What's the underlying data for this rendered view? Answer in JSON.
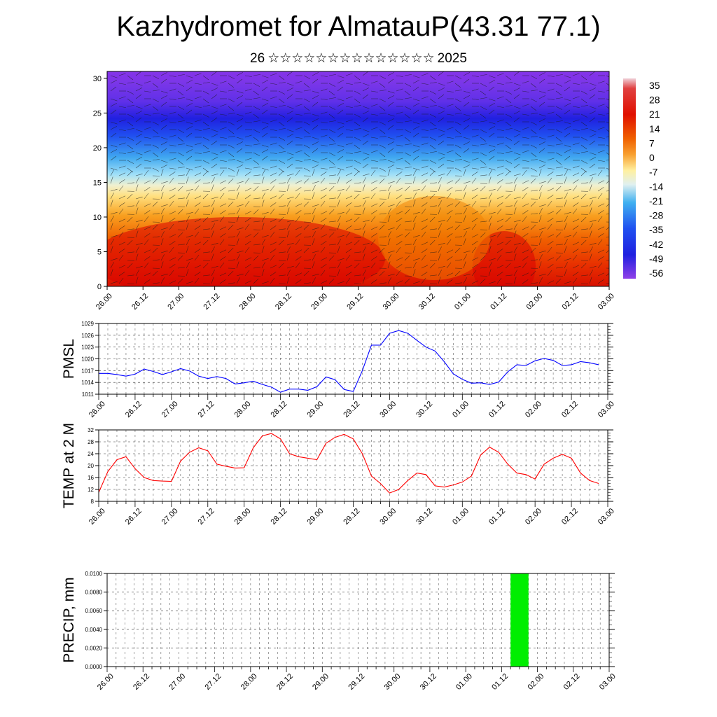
{
  "title": "Kazhydromet for AlmatauP(43.31 77.1)",
  "subtitle": {
    "day": "26",
    "stars": "☆☆☆☆☆☆☆☆☆☆☆☆☆☆",
    "year": "2025"
  },
  "time_labels": [
    "26.00",
    "26.12",
    "27.00",
    "27.12",
    "28.00",
    "28.12",
    "29.00",
    "29.12",
    "30.00",
    "30.12",
    "01.00",
    "01.12",
    "02.00",
    "02.12",
    "03.00"
  ],
  "chart_data": [
    {
      "type": "heatmap",
      "name": "cross-section",
      "ylim": [
        0,
        31
      ],
      "yticks": [
        0,
        5,
        10,
        15,
        20,
        25,
        30
      ],
      "colorbar": {
        "labels": [
          "35",
          "28",
          "21",
          "14",
          "7",
          "0",
          "-7",
          "-14",
          "-21",
          "-28",
          "-35",
          "-42",
          "-49",
          "-56"
        ]
      },
      "colors": {
        "warm": "#e02000",
        "neutral": "#fff0a0",
        "cold": "#2020f0",
        "top": "#8a2be2"
      }
    },
    {
      "type": "line",
      "ylabel": "PMSL",
      "ylim": [
        1011,
        1029
      ],
      "yticks": [
        "1011",
        "1014",
        "1017",
        "1020",
        "1023",
        "1026",
        "1029"
      ],
      "color": "#0000ff",
      "x": [
        0,
        3,
        6,
        9,
        12,
        15,
        18,
        21,
        24,
        27,
        30,
        33,
        36,
        39,
        42,
        45,
        48,
        51,
        54,
        57,
        60,
        63,
        66,
        69,
        72,
        75,
        78,
        81,
        84,
        87,
        90,
        93,
        96,
        99,
        102,
        105,
        108,
        111,
        114,
        117,
        120,
        123,
        126,
        129,
        132,
        135,
        138,
        141,
        144,
        147,
        150,
        153,
        156,
        159,
        162,
        165
      ],
      "y": [
        1016.3,
        1016.3,
        1016.0,
        1015.6,
        1016.1,
        1017.4,
        1016.8,
        1016.0,
        1016.7,
        1017.5,
        1016.9,
        1015.6,
        1015.0,
        1015.5,
        1015.0,
        1013.6,
        1013.9,
        1014.3,
        1013.5,
        1012.8,
        1011.5,
        1012.3,
        1012.3,
        1012.0,
        1012.9,
        1015.4,
        1014.7,
        1012.2,
        1011.7,
        1017.0,
        1023.5,
        1023.5,
        1026.5,
        1027.2,
        1026.5,
        1024.7,
        1023.0,
        1022.0,
        1019.3,
        1016.2,
        1014.8,
        1013.8,
        1013.9,
        1013.5,
        1014.1,
        1016.7,
        1018.5,
        1018.3,
        1019.5,
        1020.1,
        1019.6,
        1018.3,
        1018.5,
        1019.3,
        1019.0,
        1018.5
      ]
    },
    {
      "type": "line",
      "ylabel": "TEMP at 2 M",
      "ylim": [
        8,
        32
      ],
      "yticks": [
        "8",
        "12",
        "16",
        "20",
        "24",
        "28",
        "32"
      ],
      "color": "#ff0000",
      "x": [
        0,
        3,
        6,
        9,
        12,
        15,
        18,
        21,
        24,
        27,
        30,
        33,
        36,
        39,
        42,
        45,
        48,
        51,
        54,
        57,
        60,
        63,
        66,
        69,
        72,
        75,
        78,
        81,
        84,
        87,
        90,
        93,
        96,
        99,
        102,
        105,
        108,
        111,
        114,
        117,
        120,
        123,
        126,
        129,
        132,
        135,
        138,
        141,
        144,
        147,
        150,
        153,
        156,
        159,
        162,
        165
      ],
      "y": [
        11.0,
        18.0,
        22.0,
        23.0,
        19.0,
        16.0,
        15.0,
        14.8,
        14.7,
        21.5,
        24.5,
        26.0,
        25.0,
        20.5,
        19.8,
        19.2,
        19.3,
        26.0,
        30.0,
        30.8,
        29.0,
        24.0,
        23.0,
        22.5,
        22.0,
        27.5,
        29.5,
        30.5,
        29.0,
        24.0,
        16.5,
        14.0,
        10.8,
        12.0,
        15.0,
        17.5,
        17.0,
        13.2,
        12.8,
        13.5,
        14.5,
        16.5,
        23.5,
        26.2,
        24.5,
        20.5,
        17.5,
        17.0,
        15.5,
        20.5,
        22.5,
        23.8,
        22.5,
        17.5,
        15.0,
        14.0
      ]
    },
    {
      "type": "bar",
      "ylabel": "PRECIP, mm",
      "ylim": [
        0,
        0.01
      ],
      "yticks": [
        "0.0000",
        "0.0020",
        "0.0040",
        "0.0060",
        "0.0080",
        "0.0100"
      ],
      "color": "#00ee00",
      "bars": [
        {
          "start": 135,
          "end": 141,
          "value": 0.01
        }
      ]
    }
  ]
}
